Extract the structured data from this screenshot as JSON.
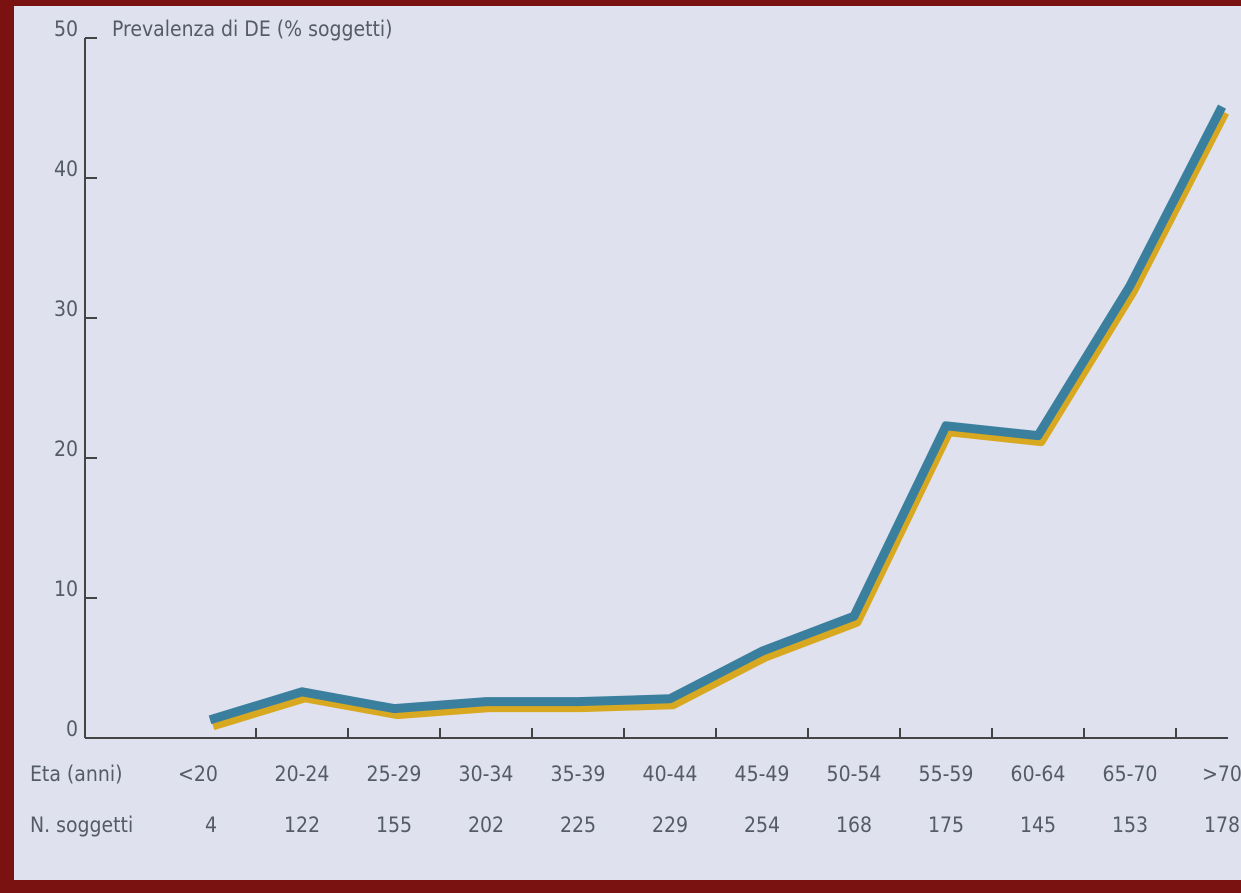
{
  "chart_data": {
    "type": "line",
    "title": "Prevalenza di DE (% soggetti)",
    "x_label": "Eta (anni)",
    "categories": [
      "<20",
      "20-24",
      "25-29",
      "30-34",
      "35-39",
      "40-44",
      "45-49",
      "50-54",
      "55-59",
      "60-64",
      "65-70",
      ">70"
    ],
    "series": [
      {
        "name": "Prevalenza di DE",
        "color": "#3b7f9e",
        "values": [
          1.3,
          3.3,
          2.1,
          2.6,
          2.6,
          2.8,
          6.2,
          8.7,
          22.3,
          21.6,
          32.3,
          45.1
        ]
      }
    ],
    "shadow_color": "#d8a820",
    "counts_label": "N. soggetti",
    "counts": [
      4,
      122,
      155,
      202,
      225,
      229,
      254,
      168,
      175,
      145,
      153,
      178
    ],
    "ylim": [
      0,
      50
    ],
    "yticks": [
      0,
      10,
      20,
      30,
      40,
      50
    ]
  }
}
